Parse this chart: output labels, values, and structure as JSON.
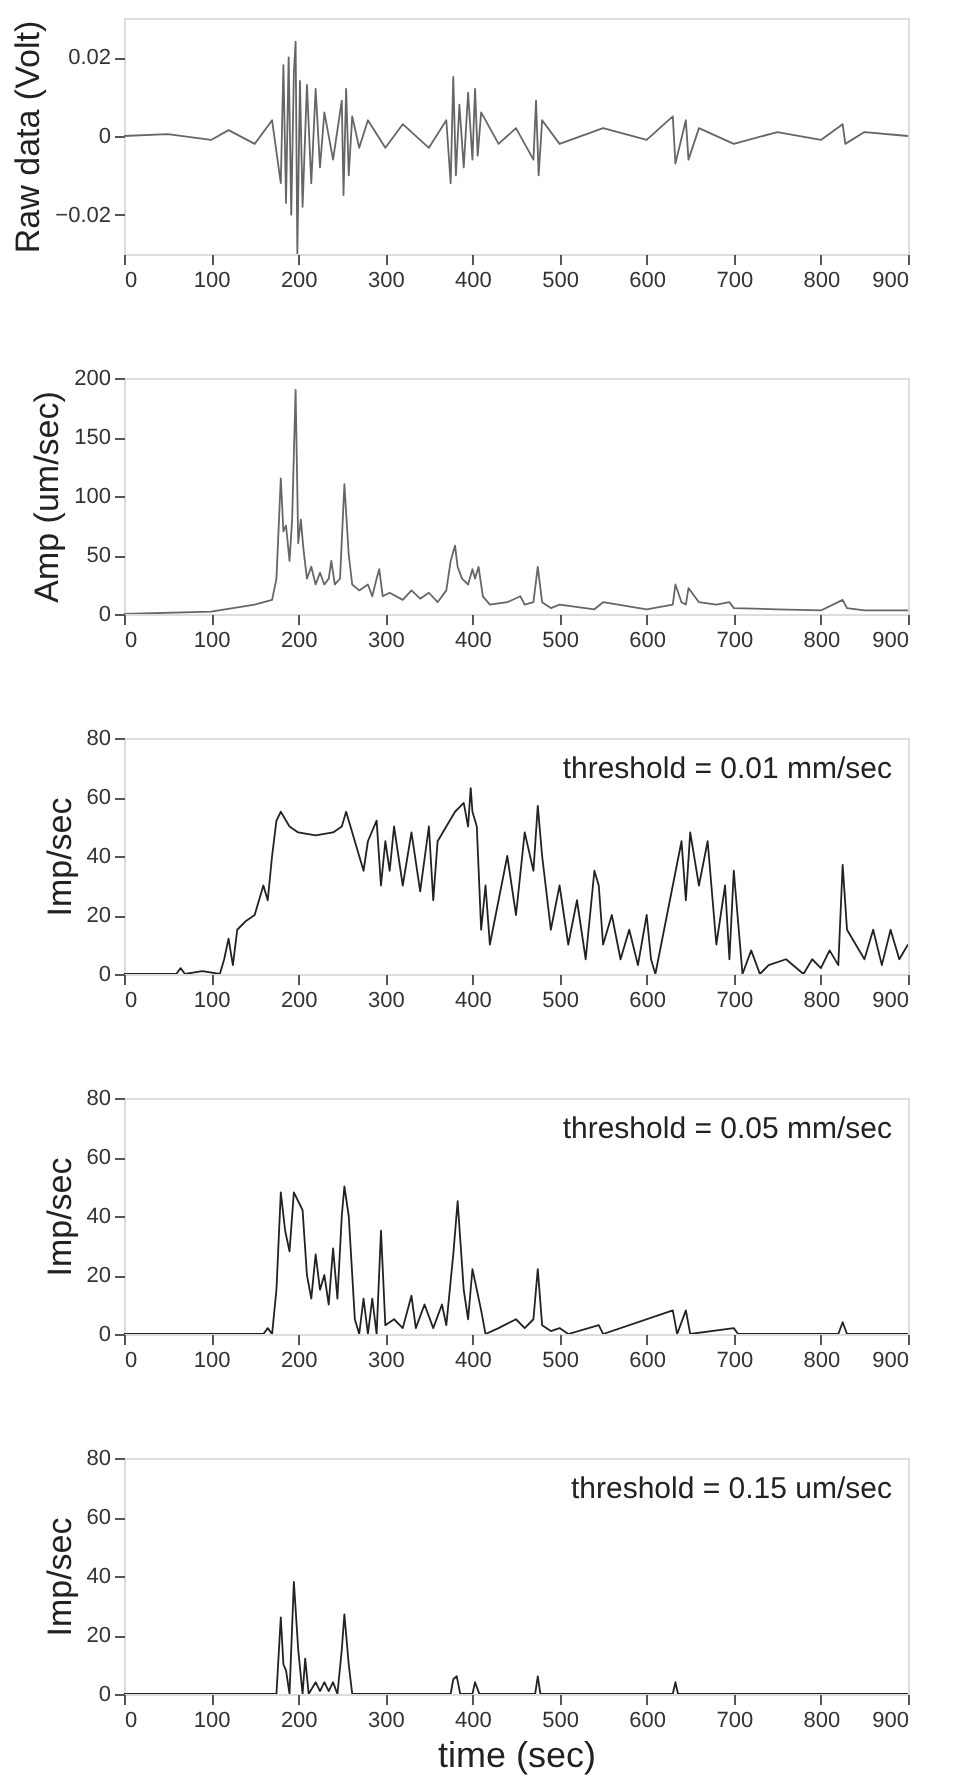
{
  "chart_data": [
    {
      "type": "line",
      "ylabel": "Raw data (Volt)",
      "xlim": [
        0,
        900
      ],
      "xticks": [
        0,
        100,
        200,
        300,
        400,
        500,
        600,
        700,
        800,
        900
      ],
      "ylim": [
        -0.03,
        0.03
      ],
      "yticks": [
        -0.02,
        0,
        0.02
      ],
      "grid": false,
      "marker": "none",
      "line_style": "solid",
      "series": [
        {
          "color": "#666666",
          "x": [
            0,
            50,
            100,
            120,
            150,
            170,
            180,
            183,
            186,
            189,
            192,
            195,
            197,
            199,
            202,
            205,
            210,
            215,
            220,
            225,
            230,
            240,
            250,
            252,
            255,
            258,
            262,
            270,
            280,
            300,
            320,
            350,
            370,
            375,
            378,
            381,
            385,
            390,
            395,
            400,
            403,
            406,
            410,
            430,
            450,
            470,
            473,
            476,
            480,
            500,
            550,
            600,
            630,
            633,
            645,
            648,
            660,
            700,
            750,
            800,
            825,
            828,
            850,
            900
          ],
          "values": [
            0,
            0.0005,
            -0.001,
            0.0015,
            -0.002,
            0.004,
            -0.012,
            0.018,
            -0.017,
            0.02,
            -0.02,
            0.016,
            0.024,
            -0.03,
            0.014,
            -0.018,
            0.013,
            -0.012,
            0.012,
            -0.008,
            0.006,
            -0.006,
            0.009,
            -0.015,
            0.012,
            -0.01,
            0.005,
            -0.003,
            0.004,
            -0.003,
            0.003,
            -0.003,
            0.004,
            -0.012,
            0.015,
            -0.01,
            0.008,
            -0.008,
            0.011,
            -0.006,
            0.012,
            -0.005,
            0.006,
            -0.002,
            0.002,
            -0.006,
            0.009,
            -0.01,
            0.004,
            -0.002,
            0.002,
            -0.001,
            0.005,
            -0.007,
            0.004,
            -0.006,
            0.002,
            -0.002,
            0.001,
            -0.001,
            0.003,
            -0.002,
            0.001,
            0
          ]
        }
      ]
    },
    {
      "type": "line",
      "ylabel": "Amp (um/sec)",
      "xlim": [
        0,
        900
      ],
      "xticks": [
        0,
        100,
        200,
        300,
        400,
        500,
        600,
        700,
        800,
        900
      ],
      "ylim": [
        0,
        200
      ],
      "yticks": [
        0,
        50,
        100,
        150,
        200
      ],
      "grid": false,
      "marker": "none",
      "line_style": "solid",
      "series": [
        {
          "color": "#666666",
          "x": [
            0,
            100,
            150,
            170,
            175,
            180,
            183,
            186,
            190,
            193,
            197,
            200,
            203,
            206,
            210,
            215,
            220,
            225,
            230,
            235,
            238,
            242,
            248,
            253,
            258,
            262,
            270,
            280,
            285,
            290,
            293,
            297,
            305,
            320,
            330,
            340,
            350,
            360,
            370,
            375,
            380,
            383,
            388,
            395,
            400,
            403,
            407,
            412,
            420,
            440,
            455,
            460,
            470,
            475,
            480,
            490,
            500,
            540,
            550,
            600,
            630,
            633,
            640,
            645,
            648,
            660,
            680,
            695,
            700,
            750,
            800,
            825,
            830,
            850,
            900
          ],
          "values": [
            0,
            2,
            8,
            12,
            30,
            115,
            70,
            75,
            45,
            80,
            190,
            60,
            80,
            55,
            30,
            40,
            25,
            35,
            25,
            30,
            45,
            25,
            30,
            110,
            50,
            25,
            20,
            25,
            15,
            30,
            38,
            15,
            18,
            12,
            20,
            13,
            18,
            10,
            20,
            45,
            58,
            40,
            30,
            25,
            38,
            30,
            40,
            15,
            8,
            10,
            15,
            8,
            10,
            40,
            10,
            5,
            8,
            4,
            10,
            4,
            8,
            25,
            10,
            8,
            22,
            10,
            8,
            10,
            5,
            4,
            3,
            12,
            5,
            3,
            3
          ]
        }
      ]
    },
    {
      "type": "line",
      "ylabel": "Imp/sec",
      "annotations": [
        "threshold = 0.01 mm/sec"
      ],
      "xlim": [
        0,
        900
      ],
      "xticks": [
        0,
        100,
        200,
        300,
        400,
        500,
        600,
        700,
        800,
        900
      ],
      "ylim": [
        0,
        80
      ],
      "yticks": [
        0,
        20,
        40,
        60,
        80
      ],
      "grid": false,
      "marker": "none",
      "line_style": "solid",
      "series": [
        {
          "color": "#222222",
          "x": [
            0,
            60,
            65,
            70,
            90,
            110,
            115,
            120,
            125,
            130,
            140,
            150,
            160,
            165,
            170,
            175,
            180,
            190,
            200,
            220,
            240,
            250,
            255,
            260,
            270,
            275,
            280,
            290,
            295,
            300,
            305,
            310,
            320,
            330,
            340,
            350,
            355,
            360,
            370,
            380,
            390,
            395,
            398,
            400,
            405,
            410,
            415,
            420,
            430,
            440,
            450,
            460,
            470,
            475,
            480,
            490,
            500,
            510,
            520,
            530,
            540,
            545,
            550,
            560,
            570,
            580,
            590,
            600,
            605,
            610,
            620,
            630,
            640,
            645,
            650,
            660,
            670,
            680,
            690,
            695,
            700,
            710,
            720,
            730,
            740,
            760,
            780,
            790,
            800,
            810,
            820,
            825,
            830,
            840,
            850,
            860,
            870,
            880,
            890,
            900
          ],
          "values": [
            0,
            0,
            2,
            0,
            1,
            0,
            5,
            12,
            3,
            15,
            18,
            20,
            30,
            25,
            40,
            52,
            55,
            50,
            48,
            47,
            48,
            50,
            55,
            50,
            40,
            35,
            45,
            52,
            30,
            45,
            35,
            50,
            30,
            48,
            28,
            50,
            25,
            45,
            50,
            55,
            58,
            50,
            63,
            55,
            50,
            15,
            30,
            10,
            25,
            40,
            20,
            48,
            35,
            57,
            40,
            15,
            30,
            10,
            25,
            5,
            35,
            30,
            10,
            20,
            5,
            15,
            3,
            20,
            5,
            0,
            15,
            30,
            45,
            25,
            48,
            30,
            45,
            10,
            30,
            5,
            35,
            0,
            8,
            0,
            3,
            5,
            0,
            5,
            2,
            8,
            3,
            37,
            15,
            10,
            5,
            15,
            3,
            15,
            5,
            10
          ]
        }
      ]
    },
    {
      "type": "line",
      "ylabel": "Imp/sec",
      "annotations": [
        "threshold = 0.05 mm/sec"
      ],
      "xlim": [
        0,
        900
      ],
      "xticks": [
        0,
        100,
        200,
        300,
        400,
        500,
        600,
        700,
        800,
        900
      ],
      "ylim": [
        0,
        80
      ],
      "yticks": [
        0,
        20,
        40,
        60,
        80
      ],
      "grid": false,
      "marker": "none",
      "line_style": "solid",
      "series": [
        {
          "color": "#222222",
          "x": [
            0,
            160,
            165,
            170,
            175,
            180,
            185,
            190,
            195,
            200,
            205,
            210,
            215,
            220,
            225,
            230,
            235,
            240,
            245,
            250,
            253,
            258,
            265,
            270,
            275,
            280,
            285,
            290,
            295,
            300,
            310,
            320,
            330,
            335,
            345,
            355,
            365,
            370,
            378,
            383,
            390,
            395,
            400,
            405,
            410,
            415,
            430,
            450,
            460,
            470,
            475,
            480,
            490,
            500,
            510,
            545,
            550,
            630,
            635,
            645,
            650,
            700,
            705,
            820,
            825,
            830,
            900
          ],
          "values": [
            0,
            0,
            2,
            0,
            15,
            48,
            35,
            28,
            48,
            45,
            42,
            20,
            12,
            27,
            15,
            20,
            10,
            29,
            12,
            40,
            50,
            40,
            5,
            0,
            12,
            0,
            12,
            0,
            35,
            3,
            5,
            2,
            13,
            2,
            10,
            2,
            10,
            3,
            27,
            45,
            15,
            5,
            22,
            15,
            8,
            0,
            2,
            5,
            2,
            5,
            22,
            3,
            1,
            2,
            0,
            3,
            0,
            8,
            0,
            8,
            0,
            2,
            0,
            0,
            4,
            0,
            0
          ]
        }
      ]
    },
    {
      "type": "line",
      "ylabel": "Imp/sec",
      "xlabel": "time (sec)",
      "annotations": [
        "threshold = 0.15 um/sec"
      ],
      "xlim": [
        0,
        900
      ],
      "xticks": [
        0,
        100,
        200,
        300,
        400,
        500,
        600,
        700,
        800,
        900
      ],
      "ylim": [
        0,
        80
      ],
      "yticks": [
        0,
        20,
        40,
        60,
        80
      ],
      "grid": false,
      "marker": "none",
      "line_style": "solid",
      "series": [
        {
          "color": "#222222",
          "x": [
            0,
            175,
            180,
            183,
            186,
            190,
            195,
            200,
            205,
            208,
            212,
            220,
            225,
            230,
            235,
            240,
            245,
            250,
            253,
            258,
            262,
            375,
            378,
            382,
            386,
            400,
            403,
            408,
            472,
            475,
            478,
            630,
            633,
            636,
            900
          ],
          "values": [
            0,
            0,
            26,
            10,
            8,
            0,
            38,
            15,
            0,
            12,
            0,
            4,
            1,
            4,
            1,
            4,
            0,
            15,
            27,
            10,
            0,
            0,
            5,
            6,
            0,
            0,
            4,
            0,
            0,
            6,
            0,
            0,
            4,
            0,
            0
          ]
        }
      ]
    }
  ]
}
